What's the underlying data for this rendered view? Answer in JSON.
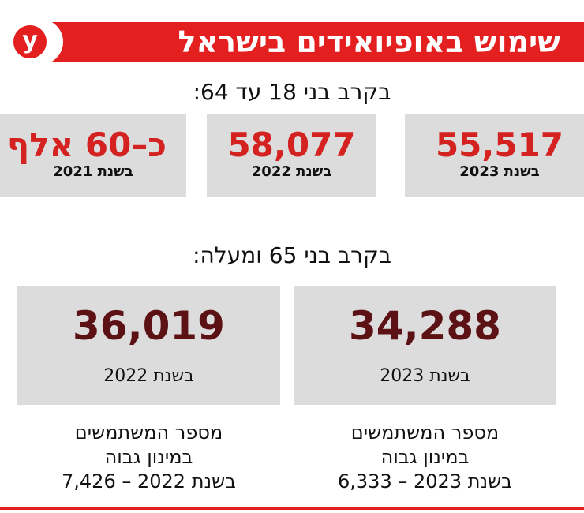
{
  "header": {
    "logo": "y",
    "title": "שימוש באופיואידים בישראל"
  },
  "section_18_64": {
    "heading": "בקרב בני 18 עד 64:",
    "cards": [
      {
        "number": "55,517",
        "year": "בשנת 2023"
      },
      {
        "number": "58,077",
        "year": "בשנת 2022"
      },
      {
        "number": "כ–60 אלף",
        "year": "בשנת 2021"
      }
    ]
  },
  "section_65_plus": {
    "heading": "בקרב בני 65 ומעלה:",
    "cards": [
      {
        "number": "34,288",
        "year": "בשנת 2023",
        "note": [
          "מספר המשתמשים",
          "במינון גבוה",
          "בשנת 2023 – 6,333"
        ]
      },
      {
        "number": "36,019",
        "year": "בשנת 2022",
        "note": [
          "מספר המשתמשים",
          "במינון גבוה",
          "בשנת 2022 – 7,426"
        ]
      }
    ]
  }
}
